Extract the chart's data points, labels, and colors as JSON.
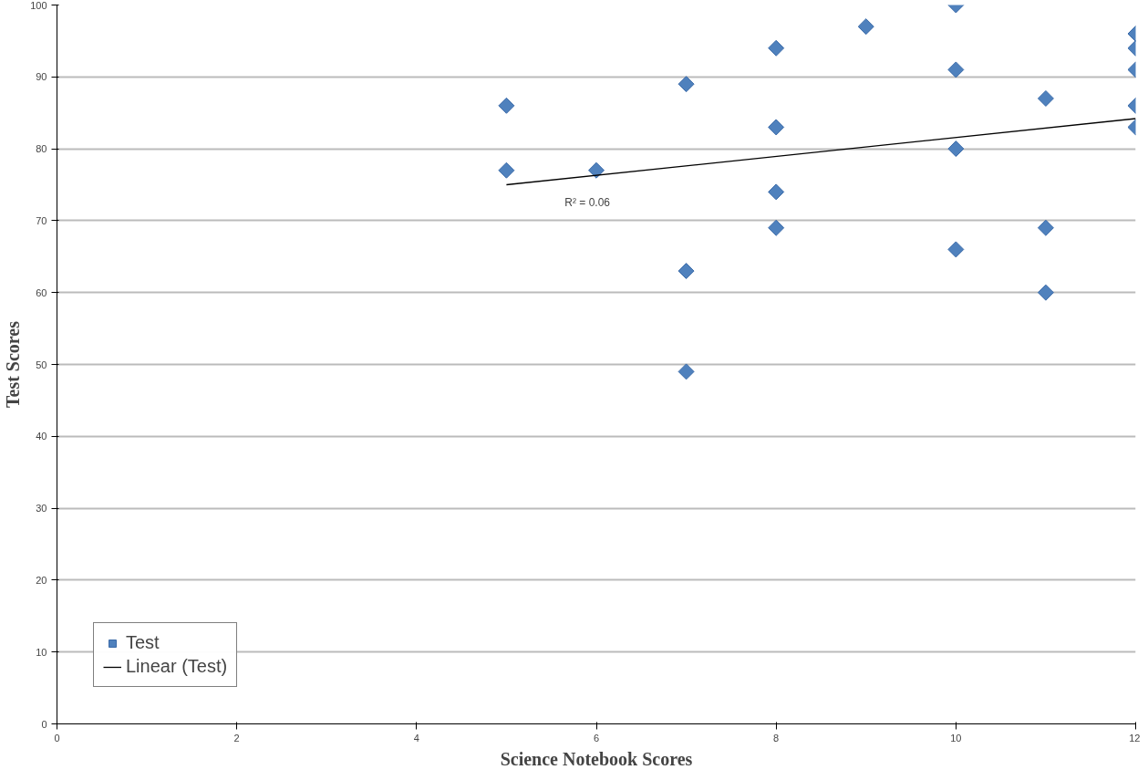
{
  "chart_data": {
    "type": "scatter",
    "xlabel": "Science Notebook Scores",
    "ylabel": "Test Scores",
    "xlim": [
      0,
      12
    ],
    "xticks": [
      0,
      2,
      4,
      6,
      8,
      10,
      12
    ],
    "ylim": [
      0,
      100
    ],
    "yticks": [
      0,
      10,
      20,
      30,
      40,
      50,
      60,
      70,
      80,
      90,
      100
    ],
    "grid": "y",
    "legend": "bottom left",
    "series": [
      {
        "name": "Test",
        "marker": "diamond",
        "color": "#4f81bd",
        "x": [
          5,
          5,
          6,
          7,
          7,
          7,
          8,
          8,
          8,
          8,
          9,
          10,
          10,
          10,
          10,
          11,
          11,
          11,
          12,
          12,
          12,
          12,
          12
        ],
        "values": [
          86,
          77,
          77,
          89,
          63,
          49,
          94,
          83,
          74,
          69,
          97,
          100,
          91,
          80,
          66,
          87,
          69,
          60,
          96,
          94,
          91,
          86,
          83
        ]
      },
      {
        "name": "Linear (Test)",
        "type": "line",
        "color": "#000000",
        "x": [
          5,
          12
        ],
        "values": [
          75,
          84.2
        ]
      }
    ],
    "annotations": [
      "R² = 0.06"
    ]
  }
}
